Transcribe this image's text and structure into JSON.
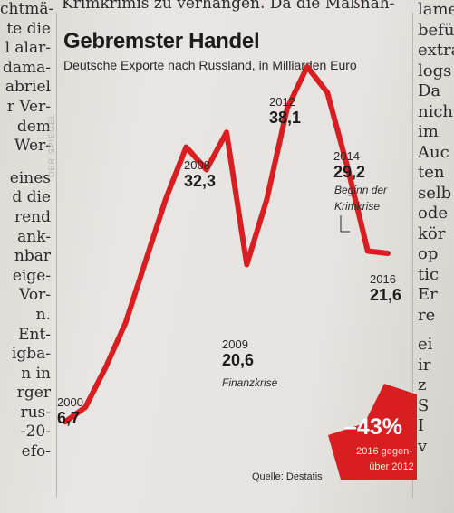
{
  "article": {
    "top_line": "Krimkrimis zu verhängen. Da die Maßnah-",
    "left_column": [
      "chtmä-",
      "te die",
      "l alar-",
      "dama-",
      "abriel",
      "r Ver-",
      "dem",
      "Wer-",
      "",
      "eines",
      "d die",
      "rend",
      "ank-",
      "nbar",
      "eige-",
      "Vor-",
      "n.",
      "Ent-",
      "igba-",
      "n in",
      "rger",
      "rus-",
      "-20-",
      "efo-"
    ],
    "right_column": [
      "lamen",
      "befü",
      "extra",
      "logs",
      "Da",
      "nich",
      "im",
      "Auc",
      "ten",
      "selb",
      "ode",
      "kör",
      "op",
      "tic",
      "Er",
      "re",
      "",
      "ei",
      "ir",
      "z",
      "S",
      "I",
      "v"
    ]
  },
  "chart_data": {
    "type": "line",
    "title": "Gebremster Handel",
    "subtitle": "Deutsche Exporte nach Russland, in Milliarden Euro",
    "xlabel": "",
    "ylabel": "",
    "x": [
      2000,
      2001,
      2002,
      2003,
      2004,
      2005,
      2006,
      2007,
      2008,
      2009,
      2010,
      2011,
      2012,
      2013,
      2014,
      2015,
      2016
    ],
    "values": [
      6.7,
      8.0,
      11.5,
      15.5,
      21.0,
      26.5,
      31.0,
      29.0,
      32.3,
      20.6,
      26.4,
      34.4,
      38.1,
      35.8,
      29.2,
      21.8,
      21.6
    ],
    "xlim": [
      2000,
      2016
    ],
    "ylim": [
      0,
      40
    ],
    "grid": false,
    "legend": "none",
    "line_color": "#d81e21",
    "annotations": [
      {
        "id": "y2000",
        "year": "2000",
        "value": "6,7",
        "note": ""
      },
      {
        "id": "y2008",
        "year": "2008",
        "value": "32,3",
        "note": ""
      },
      {
        "id": "y2009",
        "year": "2009",
        "value": "20,6",
        "note": "Finanzkrise"
      },
      {
        "id": "y2012",
        "year": "2012",
        "value": "38,1",
        "note": ""
      },
      {
        "id": "y2014",
        "year": "2014",
        "value": "29,2",
        "note": "Beginn der Krimkrise"
      },
      {
        "id": "y2016",
        "year": "2016",
        "value": "21,6",
        "note": ""
      }
    ],
    "badge": {
      "value": "–43%",
      "note_line1": "2016 gegen-",
      "note_line2": "über 2012",
      "color": "#d81e21"
    },
    "source": "Quelle: Destatis",
    "watermark": "DER SPIEGEL"
  }
}
